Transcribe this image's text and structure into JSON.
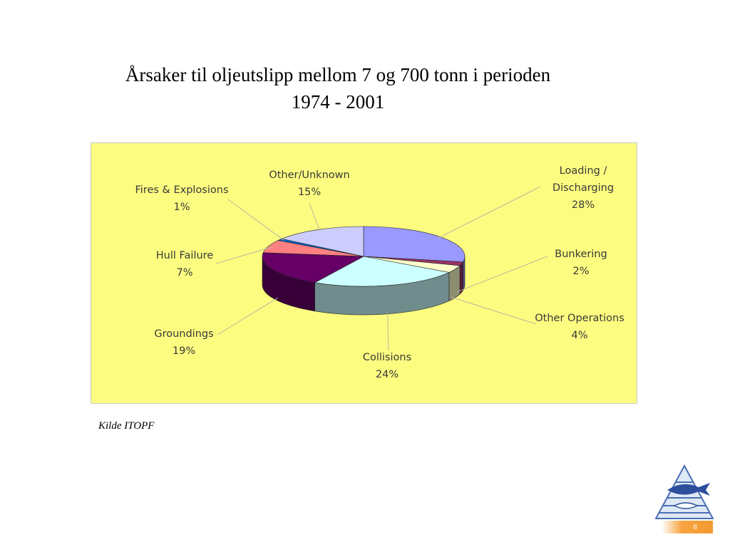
{
  "chart_data": {
    "type": "pie3d",
    "title": "Årsaker til oljeutslipp mellom 7 og 700 tonn i perioden 1974 - 2001",
    "categories": [
      "Loading / Discharging",
      "Bunkering",
      "Other Operations",
      "Collisions",
      "Groundings",
      "Hull Failure",
      "Fires & Explosions",
      "Other/Unknown"
    ],
    "values": [
      28,
      2,
      4,
      24,
      19,
      7,
      1,
      15
    ],
    "value_labels": [
      "28%",
      "2%",
      "4%",
      "24%",
      "19%",
      "7%",
      "1%",
      "15%"
    ],
    "colors": [
      "#9999ff",
      "#993366",
      "#ffffcc",
      "#ccffff",
      "#660066",
      "#ff8080",
      "#0066cc",
      "#ccccff"
    ]
  },
  "source": "Kilde ITOPF",
  "page_number": "8"
}
